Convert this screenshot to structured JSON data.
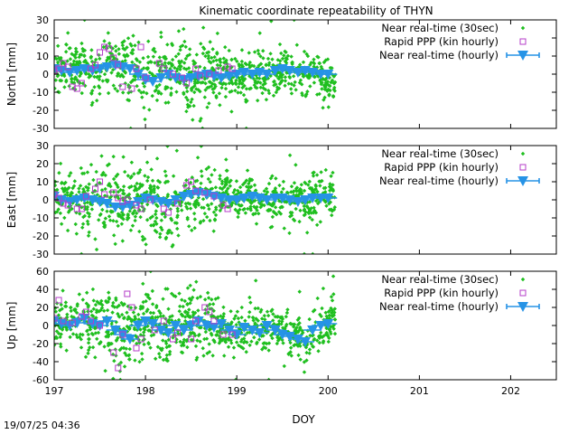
{
  "chart_data": {
    "type": "scatter",
    "title": "Kinematic coordinate repeatability of THYN",
    "xlabel": "DOY",
    "xlim": [
      197,
      202.5
    ],
    "xticks": [
      197,
      198,
      199,
      200,
      201,
      202
    ],
    "timestamp": "19/07/25 04:36",
    "colors": {
      "realtime30": "#1fbf1f",
      "rapid": "#b43cc8",
      "hourly": "#2693e6",
      "frame": "#000000"
    },
    "legend_placement": "top-right",
    "grid": false,
    "panels": [
      {
        "ylabel": "North [mm]",
        "ylim": [
          -30,
          30
        ],
        "yticks": [
          -30,
          -20,
          -10,
          0,
          10,
          20,
          30
        ],
        "series": [
          {
            "name": "Near real-time (30sec)",
            "marker": "green-diamond",
            "x_range": [
              197.0,
              200.08
            ],
            "spread": 6,
            "outlier_spread": 15,
            "anchors": [
              [
                197.0,
                3
              ],
              [
                197.2,
                2
              ],
              [
                197.4,
                2
              ],
              [
                197.6,
                6
              ],
              [
                197.8,
                3
              ],
              [
                198.0,
                -2
              ],
              [
                198.2,
                1
              ],
              [
                198.5,
                -2
              ],
              [
                198.8,
                0
              ],
              [
                199.0,
                -1
              ],
              [
                199.3,
                0
              ],
              [
                199.6,
                2
              ],
              [
                199.9,
                0
              ],
              [
                200.08,
                -8
              ]
            ]
          },
          {
            "name": "Rapid PPP (kin hourly)",
            "x": [
              197.0,
              197.05,
              197.1,
              197.15,
              197.2,
              197.25,
              197.3,
              197.4,
              197.45,
              197.5,
              197.55,
              197.6,
              197.65,
              197.7,
              197.75,
              197.85,
              197.9,
              197.95,
              198.0,
              198.15,
              198.2,
              198.3,
              198.4,
              198.45,
              198.55,
              198.6,
              198.7,
              198.8,
              198.9,
              198.95
            ],
            "y": [
              2,
              3,
              6,
              4,
              -7,
              -8,
              -5,
              3,
              5,
              12,
              15,
              14,
              9,
              5,
              -7,
              -8,
              3,
              15,
              -2,
              6,
              3,
              0,
              -2,
              -5,
              3,
              -1,
              0,
              2,
              4,
              3
            ]
          },
          {
            "name": "Near real-time (hourly)",
            "x": [
              197.0,
              197.08,
              197.17,
              197.25,
              197.33,
              197.42,
              197.5,
              197.58,
              197.67,
              197.75,
              197.83,
              197.92,
              198.0,
              198.08,
              198.17,
              198.25,
              198.33,
              198.42,
              198.5,
              198.58,
              198.67,
              198.75,
              198.83,
              198.92,
              199.0,
              199.08,
              199.17,
              199.25,
              199.33,
              199.42,
              199.5,
              199.58,
              199.67,
              199.75,
              199.83,
              199.92,
              200.0
            ],
            "y": [
              3,
              2,
              1,
              2,
              3,
              2,
              3,
              4,
              5,
              4,
              3,
              0,
              -3,
              -4,
              -2,
              0,
              -2,
              -3,
              -2,
              -1,
              0,
              -1,
              -2,
              -1,
              0,
              1,
              0,
              1,
              0,
              2,
              3,
              2,
              1,
              2,
              1,
              0,
              0
            ]
          }
        ]
      },
      {
        "ylabel": "East [mm]",
        "ylim": [
          -30,
          30
        ],
        "yticks": [
          -30,
          -20,
          -10,
          0,
          10,
          20,
          30
        ],
        "series": [
          {
            "name": "Near real-time (30sec)",
            "marker": "green-diamond",
            "x_range": [
              197.0,
              200.08
            ],
            "spread": 6,
            "outlier_spread": 15,
            "anchors": [
              [
                197.0,
                1
              ],
              [
                197.3,
                -1
              ],
              [
                197.6,
                0
              ],
              [
                197.8,
                -3
              ],
              [
                198.0,
                0
              ],
              [
                198.3,
                -3
              ],
              [
                198.5,
                4
              ],
              [
                198.8,
                2
              ],
              [
                199.0,
                0
              ],
              [
                199.3,
                1
              ],
              [
                199.6,
                0
              ],
              [
                199.9,
                0
              ],
              [
                200.08,
                2
              ]
            ]
          },
          {
            "name": "Rapid PPP (kin hourly)",
            "x": [
              197.0,
              197.05,
              197.1,
              197.15,
              197.25,
              197.3,
              197.35,
              197.45,
              197.5,
              197.55,
              197.65,
              197.7,
              197.75,
              197.8,
              197.9,
              197.95,
              198.05,
              198.2,
              198.25,
              198.35,
              198.45,
              198.5,
              198.55,
              198.65,
              198.75,
              198.85,
              198.9
            ],
            "y": [
              3,
              1,
              -2,
              -3,
              -5,
              -5,
              2,
              6,
              10,
              3,
              4,
              1,
              -1,
              0,
              -3,
              -5,
              0,
              -5,
              -7,
              -2,
              8,
              10,
              5,
              4,
              2,
              -3,
              -5
            ]
          },
          {
            "name": "Near real-time (hourly)",
            "x": [
              197.0,
              197.08,
              197.17,
              197.25,
              197.33,
              197.42,
              197.5,
              197.58,
              197.67,
              197.75,
              197.83,
              197.92,
              198.0,
              198.08,
              198.17,
              198.25,
              198.33,
              198.42,
              198.5,
              198.58,
              198.67,
              198.75,
              198.83,
              198.92,
              199.0,
              199.08,
              199.17,
              199.25,
              199.33,
              199.42,
              199.5,
              199.58,
              199.67,
              199.75,
              199.83,
              199.92,
              200.0
            ],
            "y": [
              2,
              0,
              -1,
              0,
              1,
              0,
              -1,
              -2,
              -4,
              -4,
              -3,
              -1,
              1,
              0,
              -1,
              -2,
              0,
              2,
              3,
              4,
              3,
              2,
              1,
              0,
              0,
              1,
              2,
              1,
              0,
              1,
              1,
              0,
              -1,
              0,
              1,
              1,
              1
            ]
          }
        ]
      },
      {
        "ylabel": "Up [mm]",
        "ylim": [
          -60,
          60
        ],
        "yticks": [
          -60,
          -40,
          -20,
          0,
          20,
          40,
          60
        ],
        "series": [
          {
            "name": "Near real-time (30sec)",
            "marker": "green-diamond",
            "x_range": [
              197.0,
              200.08
            ],
            "spread": 12,
            "outlier_spread": 30,
            "anchors": [
              [
                197.0,
                2
              ],
              [
                197.3,
                5
              ],
              [
                197.6,
                -3
              ],
              [
                197.8,
                -10
              ],
              [
                198.0,
                2
              ],
              [
                198.2,
                -5
              ],
              [
                198.5,
                2
              ],
              [
                198.8,
                -3
              ],
              [
                199.0,
                -8
              ],
              [
                199.3,
                0
              ],
              [
                199.6,
                -8
              ],
              [
                199.75,
                -15
              ],
              [
                199.9,
                0
              ],
              [
                200.08,
                5
              ]
            ]
          },
          {
            "name": "Rapid PPP (kin hourly)",
            "x": [
              197.0,
              197.05,
              197.1,
              197.2,
              197.3,
              197.35,
              197.4,
              197.5,
              197.65,
              197.7,
              197.75,
              197.8,
              197.85,
              197.9,
              197.95,
              198.1,
              198.2,
              198.3,
              198.35,
              198.5,
              198.55,
              198.65,
              198.7,
              198.75,
              198.85,
              198.95
            ],
            "y": [
              8,
              28,
              5,
              3,
              10,
              15,
              5,
              0,
              -30,
              -47,
              -10,
              35,
              20,
              -25,
              -15,
              -5,
              5,
              -15,
              -8,
              -15,
              5,
              20,
              15,
              5,
              -10,
              -10
            ]
          },
          {
            "name": "Near real-time (hourly)",
            "x": [
              197.0,
              197.08,
              197.17,
              197.25,
              197.33,
              197.42,
              197.5,
              197.58,
              197.67,
              197.75,
              197.83,
              197.92,
              198.0,
              198.08,
              198.17,
              198.25,
              198.33,
              198.42,
              198.5,
              198.58,
              198.67,
              198.75,
              198.83,
              198.92,
              199.0,
              199.08,
              199.17,
              199.25,
              199.33,
              199.42,
              199.5,
              199.58,
              199.67,
              199.75,
              199.83,
              199.92,
              200.0
            ],
            "y": [
              5,
              2,
              0,
              3,
              8,
              2,
              0,
              5,
              -5,
              -10,
              -15,
              0,
              5,
              2,
              -5,
              -8,
              0,
              -5,
              0,
              5,
              0,
              -2,
              2,
              -5,
              -10,
              -2,
              -5,
              -8,
              0,
              -5,
              -10,
              -12,
              -15,
              -18,
              -5,
              0,
              2
            ]
          }
        ]
      }
    ]
  }
}
